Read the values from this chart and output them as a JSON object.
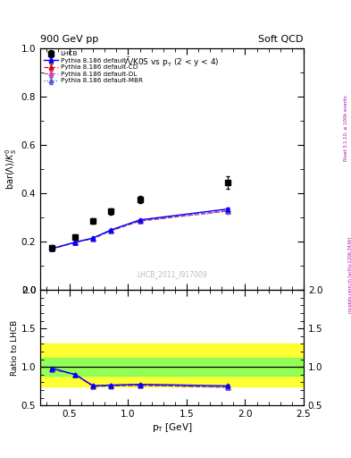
{
  "title_top": "900 GeV pp",
  "title_right": "Soft QCD",
  "plot_title": "$\\bar{\\Lambda}$/K0S vs p$_{\\rm T}$ (2 < y < 4)",
  "ylabel_main": "bar$(\\Lambda)/K^0_S$",
  "ylabel_ratio": "Ratio to LHCB",
  "xlabel": "p$_{\\rm T}$ [GeV]",
  "watermark": "LHCB_2011_I917009",
  "rivet_label": "Rivet 3.1.10, ≥ 100k events",
  "mcplots_label": "mcplots.cern.ch [arXiv:1306.3436]",
  "lhcb_pt": [
    0.35,
    0.55,
    0.7,
    0.85,
    1.1,
    1.85
  ],
  "lhcb_val": [
    0.175,
    0.22,
    0.285,
    0.325,
    0.375,
    0.445
  ],
  "lhcb_err": [
    0.01,
    0.01,
    0.012,
    0.012,
    0.015,
    0.025
  ],
  "pythia_pt": [
    0.35,
    0.55,
    0.7,
    0.85,
    1.1,
    1.85
  ],
  "default_val": [
    0.172,
    0.198,
    0.215,
    0.248,
    0.29,
    0.335
  ],
  "default_err": [
    0.002,
    0.002,
    0.003,
    0.003,
    0.004,
    0.008
  ],
  "cd_val": [
    0.17,
    0.198,
    0.213,
    0.245,
    0.285,
    0.328
  ],
  "cd_err": [
    0.002,
    0.002,
    0.003,
    0.003,
    0.004,
    0.008
  ],
  "dl_val": [
    0.17,
    0.198,
    0.215,
    0.246,
    0.288,
    0.328
  ],
  "dl_err": [
    0.002,
    0.002,
    0.003,
    0.003,
    0.004,
    0.008
  ],
  "mbr_val": [
    0.17,
    0.198,
    0.213,
    0.244,
    0.286,
    0.325
  ],
  "mbr_err": [
    0.002,
    0.002,
    0.003,
    0.003,
    0.004,
    0.008
  ],
  "xlim": [
    0.25,
    2.5
  ],
  "ylim_main": [
    0.0,
    1.0
  ],
  "ylim_ratio": [
    0.5,
    2.0
  ],
  "yellow_band_lo": 0.75,
  "yellow_band_hi": 1.3,
  "green_band_lo": 0.88,
  "green_band_hi": 1.12,
  "color_default": "#0000ff",
  "color_cd": "#dd0000",
  "color_dl": "#cc44aa",
  "color_mbr": "#5555dd",
  "lhcb_color": "#000000"
}
